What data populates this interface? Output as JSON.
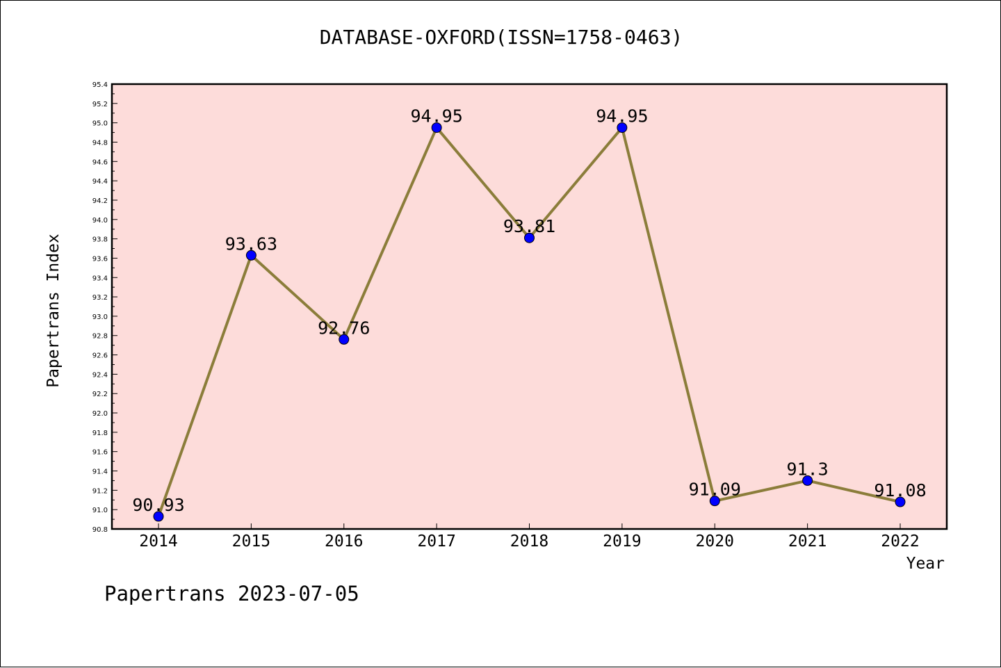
{
  "chart_data": {
    "type": "line",
    "title": "DATABASE-OXFORD(ISSN=1758-0463)",
    "xlabel": "Year",
    "ylabel": "Papertrans Index",
    "footer": "Papertrans 2023-07-05",
    "x": [
      "2014",
      "2015",
      "2016",
      "2017",
      "2018",
      "2019",
      "2020",
      "2021",
      "2022"
    ],
    "series": [
      {
        "values": [
          90.93,
          93.63,
          92.76,
          94.95,
          93.81,
          94.95,
          91.09,
          91.3,
          91.08
        ],
        "labels": [
          "90.93",
          "93.63",
          "92.76",
          "94.95",
          "93.81",
          "94.95",
          "91.09",
          "91.3",
          "91.08"
        ],
        "line_color": "#8b7d3a",
        "marker_color": "#0000ff"
      }
    ],
    "ylim": [
      90.8,
      95.4
    ],
    "yticks": [
      "90.8",
      "91.0",
      "91.2",
      "91.4",
      "91.6",
      "91.8",
      "92.0",
      "92.2",
      "92.4",
      "92.6",
      "92.8",
      "93.0",
      "93.2",
      "93.4",
      "93.6",
      "93.8",
      "94.0",
      "94.2",
      "94.4",
      "94.6",
      "94.8",
      "95.0",
      "95.2",
      "95.4"
    ],
    "plot_background": "#fddcda",
    "grid": false,
    "legend": "none"
  }
}
